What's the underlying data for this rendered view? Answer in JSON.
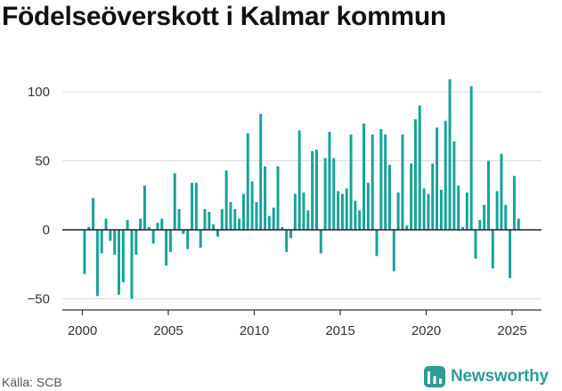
{
  "header": {
    "title": "Födelseöverskott i Kalmar kommun"
  },
  "footer": {
    "source": "Källa: SCB",
    "brand": "Newsworthy"
  },
  "colors": {
    "bar": "#17a398",
    "grid": "#dcdcdc",
    "zero_line": "#222222",
    "brand": "#2d9c99"
  },
  "chart_data": {
    "type": "bar",
    "title": "Födelseöverskott i Kalmar kommun",
    "xlabel": "",
    "ylabel": "",
    "frequency": "quarterly",
    "x_start": "2000 Q1",
    "ylim": [
      -58,
      118
    ],
    "yticks": [
      -50,
      0,
      50,
      100
    ],
    "ytick_labels": [
      "−50",
      "0",
      "50",
      "100"
    ],
    "xticks": [
      2000,
      2005,
      2010,
      2015,
      2020,
      2025
    ],
    "grid": "horizontal",
    "values": [
      -32,
      2,
      23,
      -48,
      -17,
      8,
      -8,
      -18,
      -47,
      -38,
      7,
      -50,
      -18,
      8,
      32,
      2,
      -10,
      5,
      8,
      -26,
      -16,
      41,
      15,
      -3,
      -14,
      34,
      34,
      -13,
      15,
      13,
      4,
      -5,
      15,
      43,
      20,
      15,
      8,
      26,
      70,
      35,
      20,
      84,
      46,
      10,
      16,
      46,
      2,
      -16,
      -6,
      26,
      72,
      27,
      14,
      57,
      58,
      -17,
      52,
      71,
      52,
      28,
      26,
      30,
      69,
      21,
      14,
      77,
      34,
      69,
      -19,
      73,
      69,
      47,
      -30,
      27,
      69,
      3,
      48,
      80,
      90,
      30,
      26,
      48,
      74,
      29,
      79,
      109,
      64,
      32,
      2,
      27,
      104,
      -21,
      7,
      18,
      50,
      -28,
      28,
      55,
      18,
      -35,
      39,
      8
    ]
  }
}
